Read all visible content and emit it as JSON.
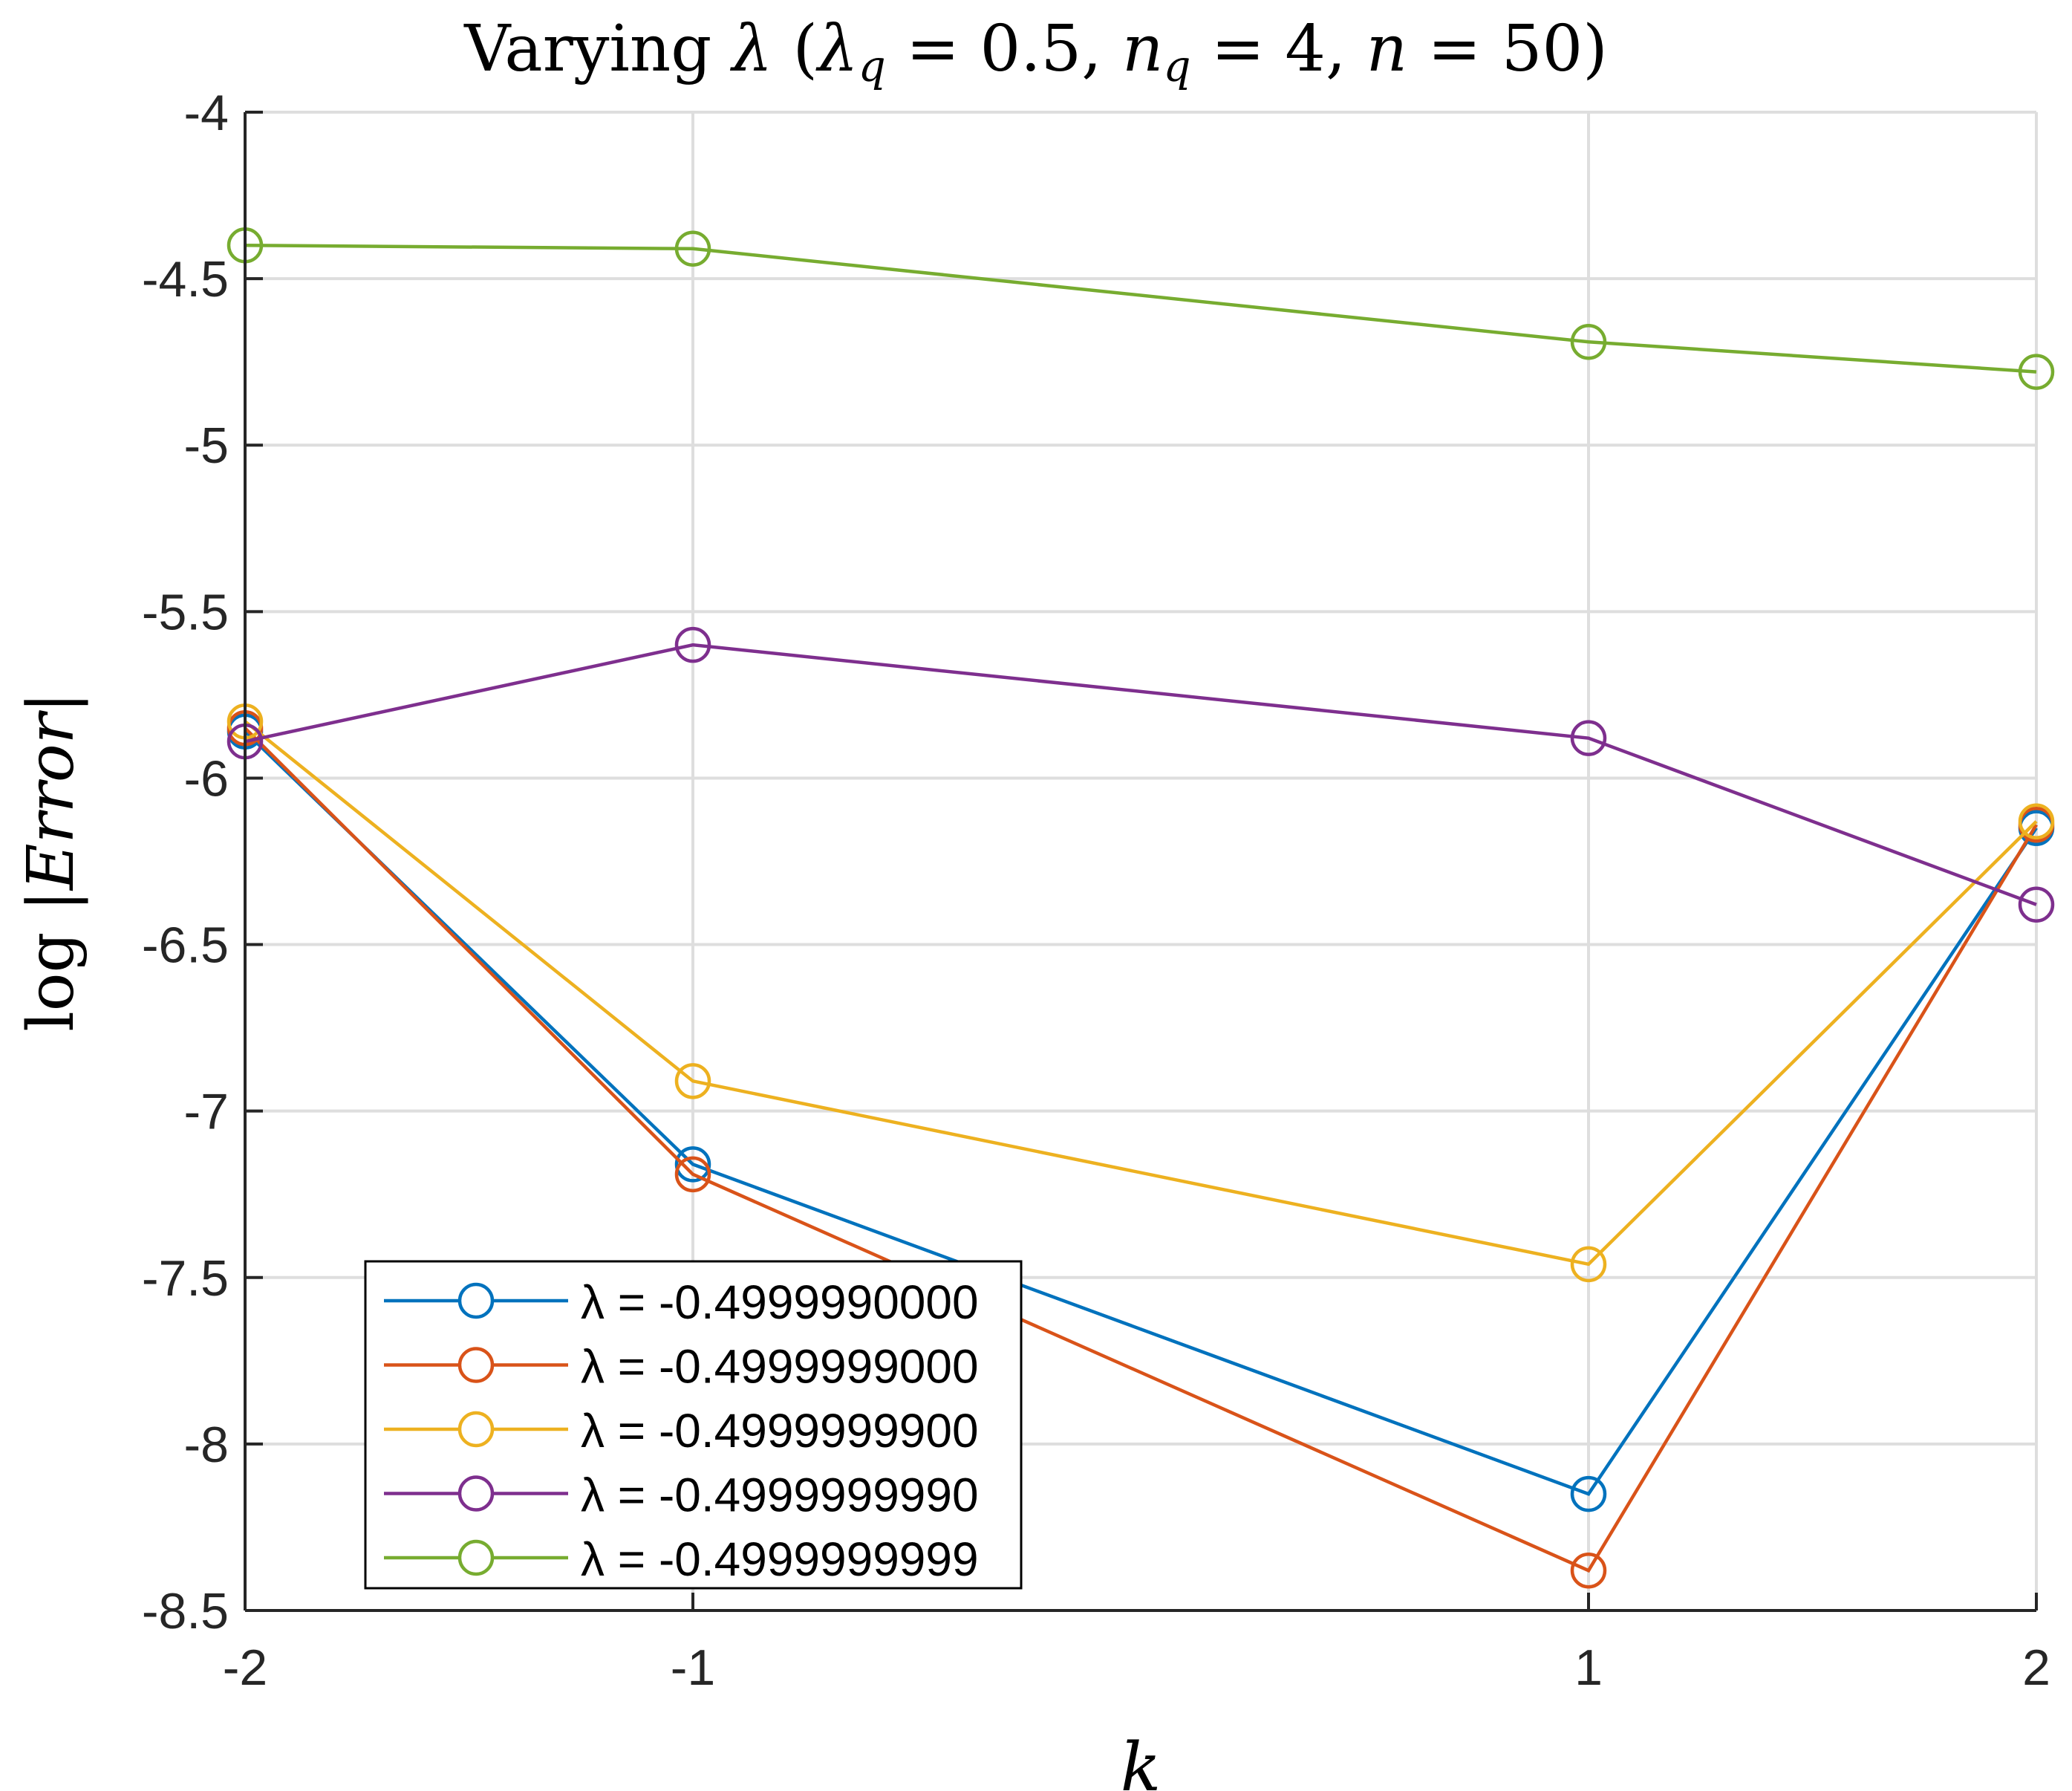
{
  "chart_data": {
    "type": "line",
    "title": {
      "prefix": "Varying",
      "lambda": "λ",
      "open": "(",
      "lambda_q": "λ",
      "sub_q": "q",
      "eq1": "= 0.5,",
      "n_q": "n",
      "sub_q2": "q",
      "eq2": "= 4,",
      "n": "n",
      "eq3": "= 50)"
    },
    "xlabel": "k",
    "ylabel": {
      "log": "log",
      "bar_left": "|",
      "err": "Error",
      "bar_right": "|"
    },
    "x": [
      -2,
      -1,
      1,
      2
    ],
    "xticks": [
      -2,
      -1,
      1,
      2
    ],
    "xtick_labels": [
      "-2",
      "-1",
      "1",
      "2"
    ],
    "xlim": [
      -2,
      2
    ],
    "ylim": [
      -8.5,
      -4
    ],
    "yticks": [
      -4,
      -4.5,
      -5,
      -5.5,
      -6,
      -6.5,
      -7,
      -7.5,
      -8,
      -8.5
    ],
    "ytick_labels": [
      "-4",
      "-4.5",
      "-5",
      "-5.5",
      "-6",
      "-6.5",
      "-7",
      "-7.5",
      "-8",
      "-8.5"
    ],
    "grid": true,
    "legend_position": "bottom-left",
    "marker": "circle",
    "series": [
      {
        "name": "-0.4999990000",
        "legend_label": "λ = -0.4999990000",
        "color": "#0072BD",
        "values": [
          -5.86,
          -7.16,
          -8.15,
          -6.15
        ]
      },
      {
        "name": "-0.4999999000",
        "legend_label": "λ = -0.4999999000",
        "color": "#D95319",
        "values": [
          -5.85,
          -7.19,
          -8.38,
          -6.14
        ]
      },
      {
        "name": "-0.4999999900",
        "legend_label": "λ = -0.4999999900",
        "color": "#EDB120",
        "values": [
          -5.83,
          -6.91,
          -7.46,
          -6.13
        ]
      },
      {
        "name": "-0.4999999990",
        "legend_label": "λ = -0.4999999990",
        "color": "#7E2F8E",
        "values": [
          -5.89,
          -5.6,
          -5.88,
          -6.38
        ]
      },
      {
        "name": "-0.4999999999",
        "legend_label": "λ = -0.4999999999",
        "color": "#77AC30",
        "values": [
          -4.4,
          -4.41,
          -4.69,
          -4.78
        ]
      }
    ]
  }
}
